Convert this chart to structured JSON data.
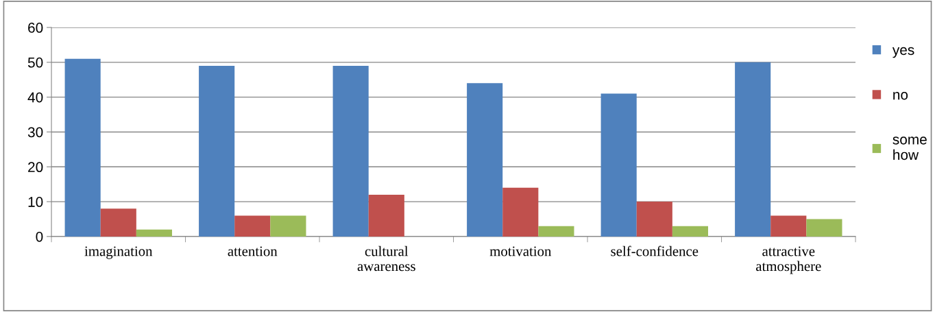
{
  "chart_data": {
    "type": "bar",
    "categories": [
      "imagination",
      "attention",
      "cultural\nawareness",
      "motivation",
      "self-confidence",
      "attractive\natmosphere"
    ],
    "series": [
      {
        "name": "yes",
        "color": "#4f81bd",
        "values": [
          51,
          49,
          49,
          44,
          41,
          50
        ]
      },
      {
        "name": "no",
        "color": "#c0504d",
        "values": [
          8,
          6,
          12,
          14,
          10,
          6
        ]
      },
      {
        "name": "some\nhow",
        "color": "#9bbb59",
        "values": [
          2,
          6,
          0,
          3,
          3,
          5
        ]
      }
    ],
    "ylim": [
      0,
      60
    ],
    "yticks": [
      0,
      10,
      20,
      30,
      40,
      50,
      60
    ],
    "grid": "y",
    "legend": "right"
  }
}
